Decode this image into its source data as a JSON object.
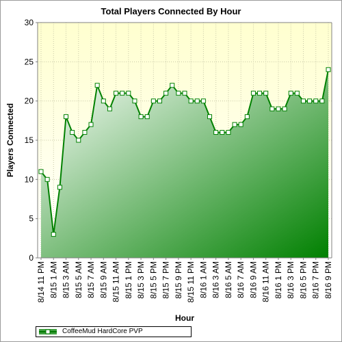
{
  "chart_data": {
    "type": "area",
    "title": "Total Players Connected By Hour",
    "xlabel": "Hour",
    "ylabel": "Players Connected",
    "ylim": [
      0,
      30
    ],
    "yticks": [
      0,
      5,
      10,
      15,
      20,
      25,
      30
    ],
    "grid": true,
    "legend_position": "bottom-left",
    "series": [
      {
        "name": "CoffeeMud HardCore PVP",
        "color": "#008000",
        "values": [
          11,
          10,
          3,
          9,
          18,
          16,
          15,
          16,
          17,
          22,
          20,
          19,
          21,
          21,
          21,
          20,
          18,
          18,
          20,
          20,
          21,
          22,
          21,
          21,
          20,
          20,
          20,
          18,
          16,
          16,
          16,
          17,
          17,
          18,
          21,
          21,
          21,
          19,
          19,
          19,
          21,
          21,
          20,
          20,
          20,
          20,
          24
        ]
      }
    ],
    "x_tick_labels": [
      "8/14 11 PM",
      "8/15 1 AM",
      "8/15 3 AM",
      "8/15 5 AM",
      "8/15 7 AM",
      "8/15 9 AM",
      "8/15 11 AM",
      "8/15 1 PM",
      "8/15 3 PM",
      "8/15 5 PM",
      "8/15 7 PM",
      "8/15 9 PM",
      "8/15 11 PM",
      "8/16 1 AM",
      "8/16 3 AM",
      "8/16 5 AM",
      "8/16 7 AM",
      "8/16 9 AM",
      "8/16 11 AM",
      "8/16 1 PM",
      "8/16 3 PM",
      "8/16 5 PM",
      "8/16 7 PM",
      "8/16 9 PM"
    ]
  }
}
